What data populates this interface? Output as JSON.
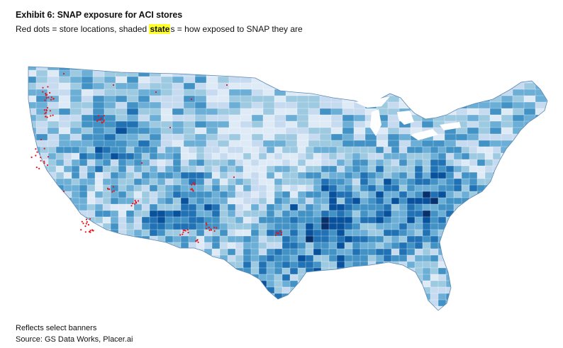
{
  "exhibit": {
    "title": "Exhibit 6: SNAP exposure for ACI stores",
    "subtitle_before": "Red dots = store locations, shaded ",
    "subtitle_highlight": "state",
    "subtitle_after": "s = how exposed to SNAP they are"
  },
  "map": {
    "region": "Contiguous United States",
    "fill_palette": [
      "#deebf7",
      "#c6dbef",
      "#9ecae1",
      "#6baed6",
      "#4292c6",
      "#2171b5",
      "#08519c",
      "#08306b"
    ],
    "store_dot_color": "#e8141a",
    "store_clusters": [
      "Seattle",
      "Portland",
      "Boise",
      "Northern California",
      "Los Angeles",
      "Las Vegas",
      "Phoenix",
      "Albuquerque",
      "Denver",
      "Dallas",
      "El Paso"
    ]
  },
  "footer": {
    "note": "Reflects select banners",
    "source": "Source: GS Data Works, Placer.ai"
  }
}
